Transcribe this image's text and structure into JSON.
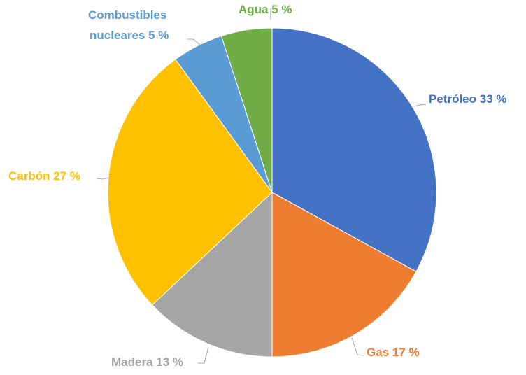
{
  "chart_data": {
    "type": "pie",
    "title": "",
    "slices": [
      {
        "label": "Petróleo",
        "value": 33,
        "display": "Petróleo 33 %",
        "color": "#4472C4"
      },
      {
        "label": "Gas",
        "value": 17,
        "display": "Gas 17 %",
        "color": "#ED7D31"
      },
      {
        "label": "Madera",
        "value": 13,
        "display": "Madera 13 %",
        "color": "#A5A5A5"
      },
      {
        "label": "Carbón",
        "value": 27,
        "display": "Carbón 27 %",
        "color": "#FFC000"
      },
      {
        "label": "Combustibles nucleares",
        "value": 5,
        "display_lines": [
          "Combustibles",
          "nucleares 5 %"
        ],
        "color": "#5B9BD5"
      },
      {
        "label": "Agua",
        "value": 5,
        "display": "Agua 5 %",
        "color": "#70AD47"
      }
    ],
    "start_angle": "12 o'clock",
    "direction": "clockwise",
    "legend": "none",
    "data_labels": "outside with leader lines"
  }
}
